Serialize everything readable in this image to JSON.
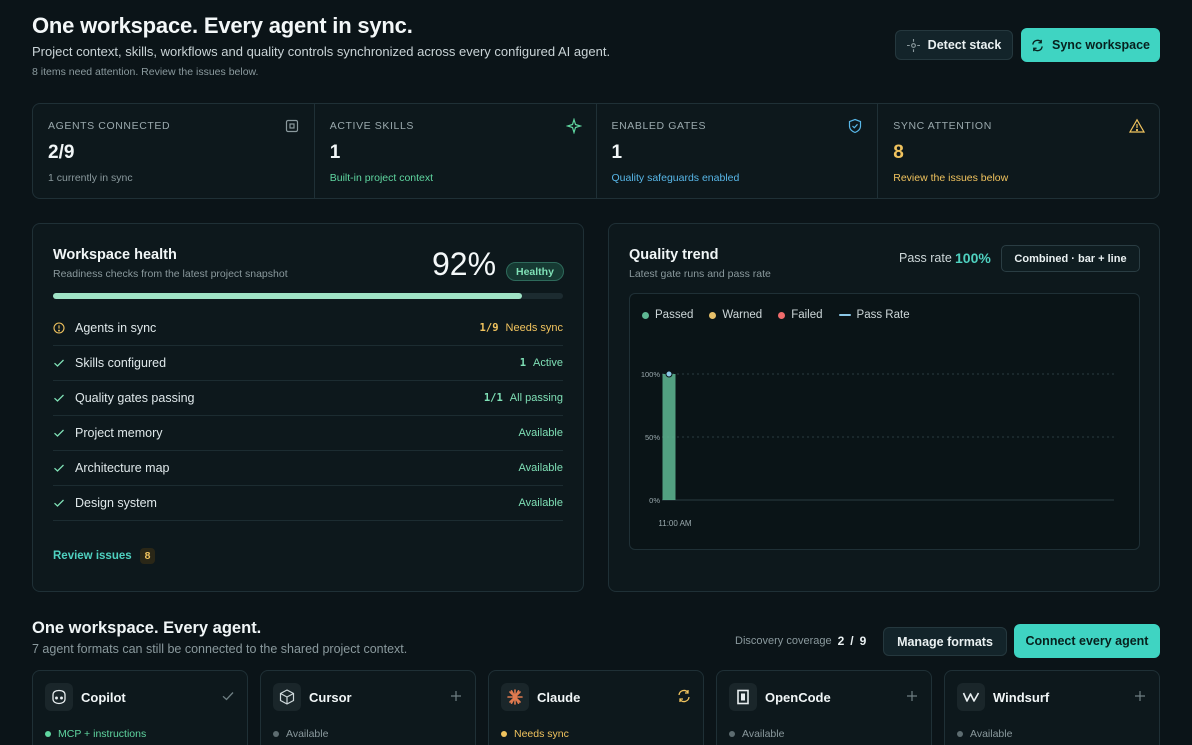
{
  "header": {
    "title": "One workspace. Every agent in sync.",
    "subtitle": "Project context, skills, workflows and quality controls synchronized across every configured AI agent.",
    "attention": "8 items need attention. Review the issues below.",
    "detect_label": "Detect stack",
    "sync_label": "Sync workspace"
  },
  "stats": [
    {
      "label": "AGENTS CONNECTED",
      "value": "2/9",
      "sub": "1 currently in sync",
      "icon": "square-icon",
      "color": "#8a999d"
    },
    {
      "label": "ACTIVE SKILLS",
      "value": "1",
      "sub": "Built-in project context",
      "icon": "sparkle-icon",
      "color": "#5fd6a0"
    },
    {
      "label": "ENABLED GATES",
      "value": "1",
      "sub": "Quality safeguards enabled",
      "icon": "shield-icon",
      "color": "#58b7e8"
    },
    {
      "label": "SYNC ATTENTION",
      "value": "8",
      "sub": "Review the issues below",
      "icon": "warning-icon",
      "color": "#f0c35e"
    }
  ],
  "health": {
    "title": "Workspace health",
    "subtitle": "Readiness checks from the latest project snapshot",
    "percent_text": "92%",
    "progress": 0.92,
    "badge": "Healthy",
    "rows": [
      {
        "label": "Agents in sync",
        "count": "1/9",
        "status": "Needs sync",
        "state": "warn"
      },
      {
        "label": "Skills configured",
        "count": "1",
        "status": "Active",
        "state": "ok"
      },
      {
        "label": "Quality gates passing",
        "count": "1/1",
        "status": "All passing",
        "state": "ok"
      },
      {
        "label": "Project memory",
        "count": "",
        "status": "Available",
        "state": "ok"
      },
      {
        "label": "Architecture map",
        "count": "",
        "status": "Available",
        "state": "ok"
      },
      {
        "label": "Design system",
        "count": "",
        "status": "Available",
        "state": "ok"
      }
    ],
    "review_label": "Review issues",
    "review_count": "8"
  },
  "trend": {
    "title": "Quality trend",
    "subtitle": "Latest gate runs and pass rate",
    "pass_rate_label": "Pass rate",
    "pass_rate_value": "100%",
    "mode_label": "Combined · bar + line"
  },
  "chart_data": {
    "type": "bar",
    "categories": [
      "11:00 AM"
    ],
    "series": [
      {
        "name": "Passed",
        "values": [
          100
        ],
        "color": "#5fb894"
      },
      {
        "name": "Warned",
        "values": [
          0
        ],
        "color": "#e6c069"
      },
      {
        "name": "Failed",
        "values": [
          0
        ],
        "color": "#ef6b6b"
      },
      {
        "name": "Pass Rate",
        "values": [
          100
        ],
        "color": "#8cc9e8"
      }
    ],
    "y_ticks": [
      "0%",
      "50%",
      "100%"
    ],
    "ylim": [
      0,
      100
    ],
    "grid": true,
    "legend": "top-left"
  },
  "agents_section": {
    "title": "One workspace. Every agent.",
    "subtitle": "7 agent formats can still be connected to the shared project context.",
    "coverage_label": "Discovery coverage",
    "coverage_count": "2",
    "coverage_sep": "/",
    "coverage_total": "9",
    "manage_label": "Manage formats",
    "connect_label": "Connect every agent",
    "agents": [
      {
        "name": "Copilot",
        "status": "MCP + instructions",
        "status_color": "#5fd6a0",
        "action_icon": "check-icon"
      },
      {
        "name": "Cursor",
        "status": "Available",
        "status_color": "#8a999d",
        "action_icon": "plus-icon"
      },
      {
        "name": "Claude",
        "status": "Needs sync",
        "status_color": "#f0c35e",
        "action_icon": "sync-icon"
      },
      {
        "name": "OpenCode",
        "status": "Available",
        "status_color": "#8a999d",
        "action_icon": "plus-icon"
      },
      {
        "name": "Windsurf",
        "status": "Available",
        "status_color": "#8a999d",
        "action_icon": "plus-icon"
      }
    ]
  }
}
